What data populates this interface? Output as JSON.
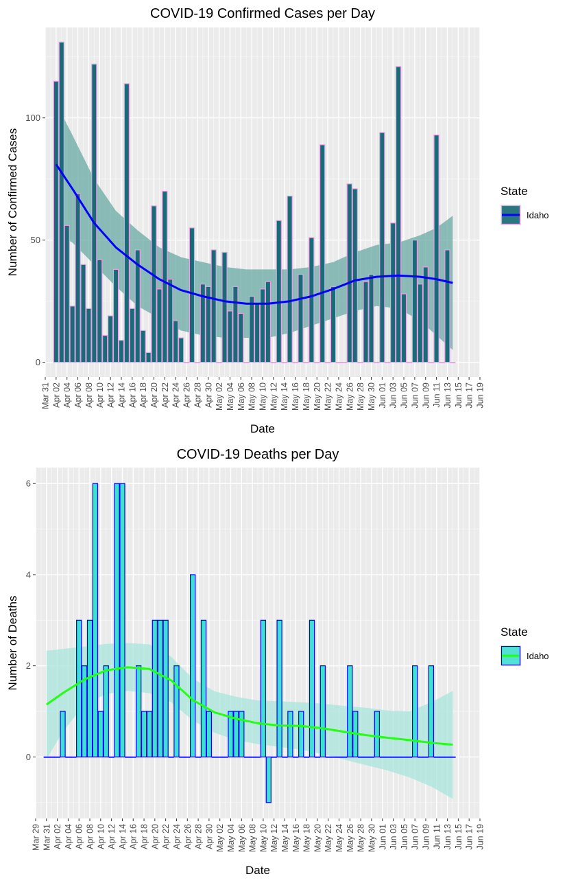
{
  "chart_data": [
    {
      "type": "bar",
      "title": "COVID-19 Confirmed Cases per Day",
      "xlabel": "Date",
      "ylabel": "Number of Confirmed Cases",
      "ylim": [
        -6,
        137
      ],
      "y_ticks": [
        0,
        50,
        100
      ],
      "x_ticks": [
        "Mar 31",
        "Apr 02",
        "Apr 04",
        "Apr 06",
        "Apr 08",
        "Apr 10",
        "Apr 12",
        "Apr 14",
        "Apr 16",
        "Apr 18",
        "Apr 20",
        "Apr 22",
        "Apr 24",
        "Apr 26",
        "Apr 28",
        "Apr 30",
        "May 02",
        "May 04",
        "May 06",
        "May 08",
        "May 10",
        "May 12",
        "May 14",
        "May 16",
        "May 18",
        "May 20",
        "May 22",
        "May 24",
        "May 26",
        "May 28",
        "May 30",
        "Jun 01",
        "Jun 03",
        "Jun 05",
        "Jun 07",
        "Jun 09",
        "Jun 11",
        "Jun 13",
        "Jun 15",
        "Jun 17",
        "Jun 19"
      ],
      "x_start": "2020-03-31",
      "x_end": "2020-06-19",
      "grid": true,
      "legend": {
        "title": "State",
        "entries": [
          "Idaho"
        ],
        "position": "right"
      },
      "colors": {
        "bar_fill": "#1a6b78",
        "bar_stroke": "#e6a0e6",
        "smooth_line": "#0000ff",
        "band": "#6aa9a4"
      },
      "series": [
        {
          "name": "Idaho",
          "dates": [
            "2020-04-02",
            "2020-04-03",
            "2020-04-04",
            "2020-04-05",
            "2020-04-06",
            "2020-04-07",
            "2020-04-08",
            "2020-04-09",
            "2020-04-10",
            "2020-04-11",
            "2020-04-12",
            "2020-04-13",
            "2020-04-14",
            "2020-04-15",
            "2020-04-16",
            "2020-04-17",
            "2020-04-18",
            "2020-04-19",
            "2020-04-20",
            "2020-04-21",
            "2020-04-22",
            "2020-04-23",
            "2020-04-24",
            "2020-04-25",
            "2020-04-26",
            "2020-04-27",
            "2020-04-28",
            "2020-04-29",
            "2020-04-30",
            "2020-05-01",
            "2020-05-02",
            "2020-05-03",
            "2020-05-04",
            "2020-05-05",
            "2020-05-06",
            "2020-05-07",
            "2020-05-08",
            "2020-05-09",
            "2020-05-10",
            "2020-05-11",
            "2020-05-12",
            "2020-05-13",
            "2020-05-14",
            "2020-05-15",
            "2020-05-16",
            "2020-05-17",
            "2020-05-18",
            "2020-05-19",
            "2020-05-20",
            "2020-05-21",
            "2020-05-22",
            "2020-05-23",
            "2020-05-24",
            "2020-05-25",
            "2020-05-26",
            "2020-05-27",
            "2020-05-28",
            "2020-05-29",
            "2020-05-30",
            "2020-05-31",
            "2020-06-01",
            "2020-06-02",
            "2020-06-03",
            "2020-06-04",
            "2020-06-05",
            "2020-06-06",
            "2020-06-07",
            "2020-06-08",
            "2020-06-09",
            "2020-06-10",
            "2020-06-11",
            "2020-06-12",
            "2020-06-13",
            "2020-06-14"
          ],
          "values": [
            115,
            131,
            56,
            23,
            69,
            40,
            22,
            122,
            42,
            11,
            19,
            38,
            9,
            114,
            22,
            46,
            13,
            4,
            64,
            30,
            70,
            34,
            17,
            10,
            0,
            55,
            0,
            32,
            31,
            46,
            0,
            45,
            21,
            31,
            20,
            0,
            27,
            24,
            30,
            33,
            0,
            58,
            0,
            68,
            0,
            36,
            0,
            51,
            0,
            89,
            0,
            31,
            0,
            0,
            73,
            71,
            0,
            33,
            36,
            0,
            94,
            0,
            57,
            121,
            28,
            0,
            50,
            32,
            39,
            0,
            93,
            0,
            46,
            0
          ]
        }
      ],
      "smooth": {
        "dates": [
          "2020-04-02",
          "2020-04-05",
          "2020-04-09",
          "2020-04-13",
          "2020-04-17",
          "2020-04-21",
          "2020-04-25",
          "2020-04-29",
          "2020-05-03",
          "2020-05-07",
          "2020-05-11",
          "2020-05-15",
          "2020-05-19",
          "2020-05-23",
          "2020-05-27",
          "2020-05-31",
          "2020-06-04",
          "2020-06-08",
          "2020-06-11",
          "2020-06-14"
        ],
        "fit": [
          81,
          71,
          57,
          47,
          40,
          34,
          29.5,
          27,
          25,
          24,
          24,
          25,
          27,
          30,
          33.5,
          35,
          35.5,
          35,
          34,
          32.5
        ],
        "lower": [
          53,
          49,
          40,
          31,
          23,
          18,
          13,
          11,
          10,
          10,
          10,
          12,
          15,
          18,
          21,
          23,
          22,
          17,
          11,
          5
        ],
        "upper": [
          106,
          93,
          75,
          62,
          54,
          47,
          43,
          41,
          39,
          38,
          38,
          38,
          39,
          41,
          45,
          48,
          49,
          52,
          55,
          60
        ]
      }
    },
    {
      "type": "bar",
      "title": "COVID-19 Deaths per Day",
      "xlabel": "Date",
      "ylabel": "Number of Deaths",
      "ylim": [
        -1.35,
        6.35
      ],
      "y_ticks": [
        0,
        2,
        4,
        6
      ],
      "x_ticks": [
        "Mar 29",
        "Mar 31",
        "Apr 02",
        "Apr 04",
        "Apr 06",
        "Apr 08",
        "Apr 10",
        "Apr 12",
        "Apr 14",
        "Apr 16",
        "Apr 18",
        "Apr 20",
        "Apr 22",
        "Apr 24",
        "Apr 26",
        "Apr 28",
        "Apr 30",
        "May 02",
        "May 04",
        "May 06",
        "May 08",
        "May 10",
        "May 12",
        "May 14",
        "May 16",
        "May 18",
        "May 20",
        "May 22",
        "May 24",
        "May 26",
        "May 28",
        "May 30",
        "Jun 01",
        "Jun 03",
        "Jun 05",
        "Jun 07",
        "Jun 09",
        "Jun 11",
        "Jun 13",
        "Jun 15",
        "Jun 17",
        "Jun 19"
      ],
      "x_start": "2020-03-29",
      "x_end": "2020-06-19",
      "grid": true,
      "legend": {
        "title": "State",
        "entries": [
          "Idaho"
        ],
        "position": "right"
      },
      "colors": {
        "bar_fill": "#40e0d0",
        "bar_stroke": "#0000ff",
        "smooth_line": "#22ff11",
        "band": "#a8e6dc"
      },
      "series": [
        {
          "name": "Idaho",
          "dates": [
            "2020-03-31",
            "2020-04-01",
            "2020-04-02",
            "2020-04-03",
            "2020-04-04",
            "2020-04-05",
            "2020-04-06",
            "2020-04-07",
            "2020-04-08",
            "2020-04-09",
            "2020-04-10",
            "2020-04-11",
            "2020-04-12",
            "2020-04-13",
            "2020-04-14",
            "2020-04-15",
            "2020-04-16",
            "2020-04-17",
            "2020-04-18",
            "2020-04-19",
            "2020-04-20",
            "2020-04-21",
            "2020-04-22",
            "2020-04-23",
            "2020-04-24",
            "2020-04-25",
            "2020-04-26",
            "2020-04-27",
            "2020-04-28",
            "2020-04-29",
            "2020-04-30",
            "2020-05-01",
            "2020-05-02",
            "2020-05-03",
            "2020-05-04",
            "2020-05-05",
            "2020-05-06",
            "2020-05-07",
            "2020-05-08",
            "2020-05-09",
            "2020-05-10",
            "2020-05-11",
            "2020-05-12",
            "2020-05-13",
            "2020-05-14",
            "2020-05-15",
            "2020-05-16",
            "2020-05-17",
            "2020-05-18",
            "2020-05-19",
            "2020-05-20",
            "2020-05-21",
            "2020-05-22",
            "2020-05-23",
            "2020-05-24",
            "2020-05-25",
            "2020-05-26",
            "2020-05-27",
            "2020-05-28",
            "2020-05-29",
            "2020-05-30",
            "2020-05-31",
            "2020-06-01",
            "2020-06-02",
            "2020-06-03",
            "2020-06-04",
            "2020-06-05",
            "2020-06-06",
            "2020-06-07",
            "2020-06-08",
            "2020-06-09",
            "2020-06-10",
            "2020-06-11",
            "2020-06-12",
            "2020-06-13",
            "2020-06-14"
          ],
          "values": [
            0,
            0,
            0,
            1,
            0,
            0,
            3,
            2,
            3,
            6,
            1,
            2,
            0,
            6,
            6,
            0,
            0,
            2,
            1,
            1,
            3,
            3,
            3,
            0,
            2,
            0,
            0,
            4,
            0,
            3,
            1,
            0,
            0,
            0,
            1,
            1,
            1,
            0,
            0,
            0,
            3,
            -1,
            0,
            3,
            0,
            1,
            0,
            1,
            0,
            3,
            0,
            2,
            0,
            0,
            0,
            0,
            2,
            1,
            0,
            0,
            0,
            1,
            0,
            0,
            0,
            0,
            0,
            0,
            2,
            0,
            0,
            2,
            0,
            0,
            0,
            0
          ]
        }
      ],
      "smooth": {
        "dates": [
          "2020-03-31",
          "2020-04-03",
          "2020-04-07",
          "2020-04-11",
          "2020-04-15",
          "2020-04-19",
          "2020-04-23",
          "2020-04-27",
          "2020-05-01",
          "2020-05-05",
          "2020-05-09",
          "2020-05-13",
          "2020-05-17",
          "2020-05-21",
          "2020-05-25",
          "2020-05-29",
          "2020-06-02",
          "2020-06-06",
          "2020-06-10",
          "2020-06-14"
        ],
        "fit": [
          1.15,
          1.4,
          1.7,
          1.9,
          1.97,
          1.93,
          1.68,
          1.25,
          0.98,
          0.84,
          0.74,
          0.69,
          0.68,
          0.63,
          0.55,
          0.48,
          0.42,
          0.37,
          0.31,
          0.27
        ],
        "lower": [
          -0.05,
          0.55,
          1.15,
          1.38,
          1.45,
          1.4,
          1.2,
          0.8,
          0.53,
          0.37,
          0.28,
          0.22,
          0.16,
          0.06,
          -0.06,
          -0.18,
          -0.3,
          -0.45,
          -0.65,
          -0.92
        ],
        "upper": [
          2.33,
          2.37,
          2.42,
          2.48,
          2.5,
          2.47,
          2.2,
          1.72,
          1.44,
          1.32,
          1.24,
          1.22,
          1.2,
          1.17,
          1.12,
          1.08,
          1.02,
          1.0,
          1.2,
          1.45
        ]
      }
    }
  ]
}
